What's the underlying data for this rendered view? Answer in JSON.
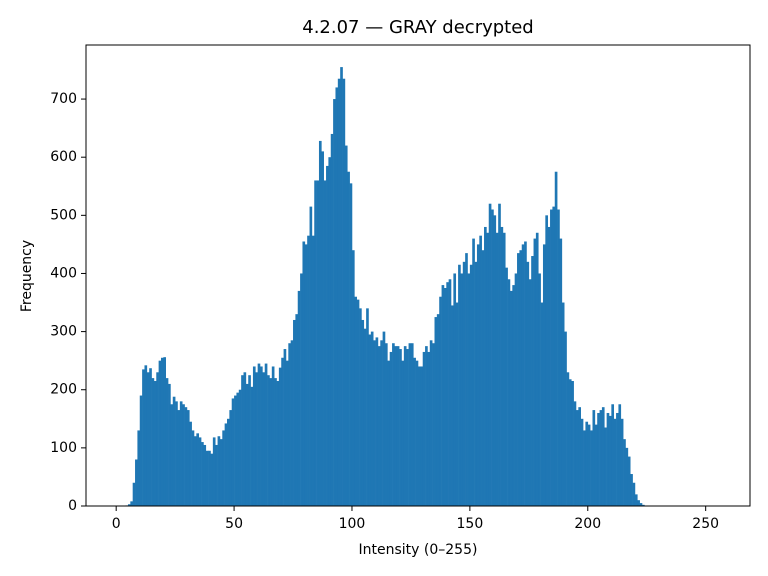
{
  "chart_data": {
    "type": "histogram",
    "title": "4.2.07 — GRAY decrypted",
    "x_label": "Intensity (0–255)",
    "y_label": "Frequency",
    "color": "#1f77b4",
    "bins": [
      0,
      1,
      2,
      3,
      4,
      5,
      6,
      7,
      8,
      9,
      10,
      11,
      12,
      13,
      14,
      15,
      16,
      17,
      18,
      19,
      20,
      21,
      22,
      23,
      24,
      25,
      26,
      27,
      28,
      29,
      30,
      31,
      32,
      33,
      34,
      35,
      36,
      37,
      38,
      39,
      40,
      41,
      42,
      43,
      44,
      45,
      46,
      47,
      48,
      49,
      50,
      51,
      52,
      53,
      54,
      55,
      56,
      57,
      58,
      59,
      60,
      61,
      62,
      63,
      64,
      65,
      66,
      67,
      68,
      69,
      70,
      71,
      72,
      73,
      74,
      75,
      76,
      77,
      78,
      79,
      80,
      81,
      82,
      83,
      84,
      85,
      86,
      87,
      88,
      89,
      90,
      91,
      92,
      93,
      94,
      95,
      96,
      97,
      98,
      99,
      100,
      101,
      102,
      103,
      104,
      105,
      106,
      107,
      108,
      109,
      110,
      111,
      112,
      113,
      114,
      115,
      116,
      117,
      118,
      119,
      120,
      121,
      122,
      123,
      124,
      125,
      126,
      127,
      128,
      129,
      130,
      131,
      132,
      133,
      134,
      135,
      136,
      137,
      138,
      139,
      140,
      141,
      142,
      143,
      144,
      145,
      146,
      147,
      148,
      149,
      150,
      151,
      152,
      153,
      154,
      155,
      156,
      157,
      158,
      159,
      160,
      161,
      162,
      163,
      164,
      165,
      166,
      167,
      168,
      169,
      170,
      171,
      172,
      173,
      174,
      175,
      176,
      177,
      178,
      179,
      180,
      181,
      182,
      183,
      184,
      185,
      186,
      187,
      188,
      189,
      190,
      191,
      192,
      193,
      194,
      195,
      196,
      197,
      198,
      199,
      200,
      201,
      202,
      203,
      204,
      205,
      206,
      207,
      208,
      209,
      210,
      211,
      212,
      213,
      214,
      215,
      216,
      217,
      218,
      219,
      220,
      221,
      222,
      223,
      224,
      225,
      226,
      227,
      228,
      229,
      230,
      231,
      232,
      233,
      234,
      235,
      236,
      237,
      238,
      239,
      240,
      241,
      242,
      243,
      244,
      245,
      246,
      247,
      248,
      249,
      250,
      251,
      252,
      253,
      254,
      255,
      256
    ],
    "counts": [
      0,
      0,
      0,
      0,
      1,
      3,
      8,
      40,
      80,
      130,
      190,
      235,
      242,
      230,
      237,
      220,
      215,
      230,
      250,
      255,
      256,
      220,
      210,
      175,
      188,
      180,
      165,
      180,
      175,
      170,
      165,
      145,
      130,
      120,
      125,
      118,
      110,
      105,
      95,
      95,
      90,
      118,
      105,
      120,
      115,
      130,
      142,
      150,
      165,
      185,
      190,
      195,
      200,
      225,
      230,
      210,
      225,
      205,
      240,
      230,
      245,
      240,
      230,
      245,
      225,
      220,
      240,
      220,
      215,
      238,
      255,
      270,
      250,
      280,
      285,
      320,
      330,
      370,
      400,
      455,
      450,
      465,
      515,
      465,
      560,
      560,
      628,
      610,
      560,
      585,
      600,
      640,
      700,
      720,
      735,
      755,
      735,
      620,
      575,
      555,
      440,
      360,
      355,
      340,
      320,
      305,
      340,
      295,
      300,
      285,
      290,
      275,
      285,
      300,
      280,
      250,
      265,
      280,
      275,
      275,
      270,
      250,
      275,
      270,
      280,
      280,
      255,
      250,
      240,
      240,
      265,
      275,
      265,
      285,
      280,
      325,
      330,
      360,
      380,
      375,
      385,
      390,
      345,
      400,
      350,
      415,
      400,
      420,
      435,
      400,
      415,
      460,
      420,
      450,
      465,
      440,
      480,
      470,
      520,
      510,
      500,
      470,
      520,
      480,
      470,
      410,
      390,
      370,
      380,
      400,
      435,
      440,
      450,
      455,
      420,
      390,
      430,
      460,
      470,
      400,
      350,
      450,
      500,
      480,
      510,
      515,
      575,
      510,
      460,
      350,
      300,
      230,
      218,
      215,
      180,
      165,
      170,
      150,
      130,
      145,
      140,
      130,
      165,
      140,
      160,
      165,
      170,
      135,
      160,
      155,
      175,
      150,
      160,
      175,
      150,
      115,
      100,
      85,
      55,
      40,
      20,
      10,
      5,
      2,
      0,
      0,
      0,
      0,
      0,
      0,
      0,
      0,
      0,
      0,
      0,
      0,
      0,
      0,
      0,
      0,
      0,
      0,
      0,
      0,
      0,
      0,
      0,
      0,
      0,
      0,
      0,
      0,
      0,
      0,
      0,
      0
    ],
    "xlim": [
      -12.8,
      268.8
    ],
    "xticks": [
      0,
      50,
      100,
      150,
      200,
      250
    ],
    "ylim": [
      0,
      793
    ],
    "yticks": [
      0,
      100,
      200,
      300,
      400,
      500,
      600,
      700
    ]
  }
}
